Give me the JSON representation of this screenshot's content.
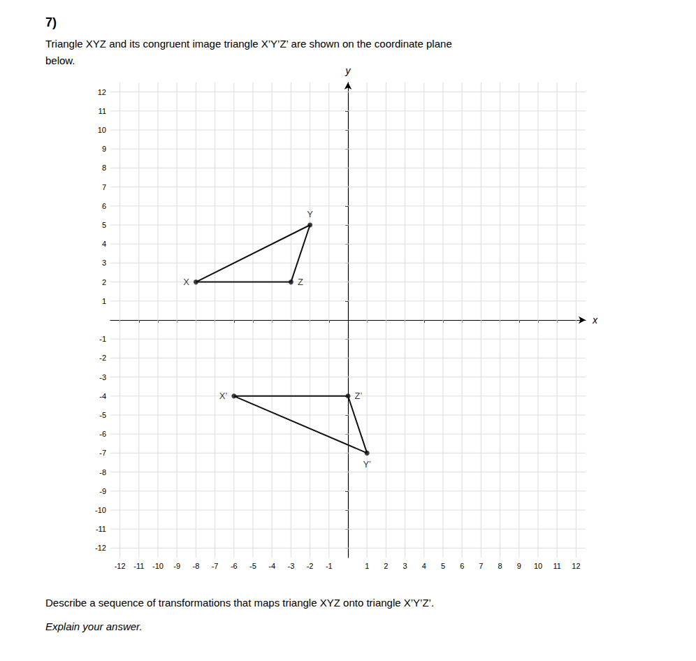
{
  "chart_data": {
    "type": "polygon",
    "title": "7)",
    "subtitle": [
      "Triangle XYZ and its congruent image triangle X’Y’Z’ are shown on the coordinate plane",
      "below."
    ],
    "annotations": [
      "Describe a sequence of transformations that maps triangle XYZ onto triangle X’Y’Z’.",
      "Explain your answer."
    ],
    "x_label": "x",
    "y_label": "y",
    "xlim": [
      -12.5,
      12.5
    ],
    "ylim": [
      -12.5,
      12.5
    ],
    "xticks": [
      -12,
      -11,
      -10,
      -9,
      -8,
      -7,
      -6,
      -5,
      -4,
      -3,
      -2,
      -1,
      1,
      2,
      3,
      4,
      5,
      6,
      7,
      8,
      9,
      10,
      11,
      12
    ],
    "yticks": [
      -12,
      -11,
      -10,
      -9,
      -8,
      -7,
      -6,
      -5,
      -4,
      -3,
      -2,
      -1,
      1,
      2,
      3,
      4,
      5,
      6,
      7,
      8,
      9,
      10,
      11,
      12
    ],
    "grid": true,
    "series": [
      {
        "x": [
          -8,
          -2,
          -3
        ],
        "values": [
          2,
          5,
          2
        ],
        "labels": [
          "X",
          "Y",
          "Z"
        ],
        "color": "#111111"
      },
      {
        "x": [
          -6,
          1,
          0
        ],
        "values": [
          -4,
          -7,
          -4
        ],
        "labels": [
          "X’",
          "Y’",
          "Z’"
        ],
        "color": "#111111"
      }
    ]
  }
}
